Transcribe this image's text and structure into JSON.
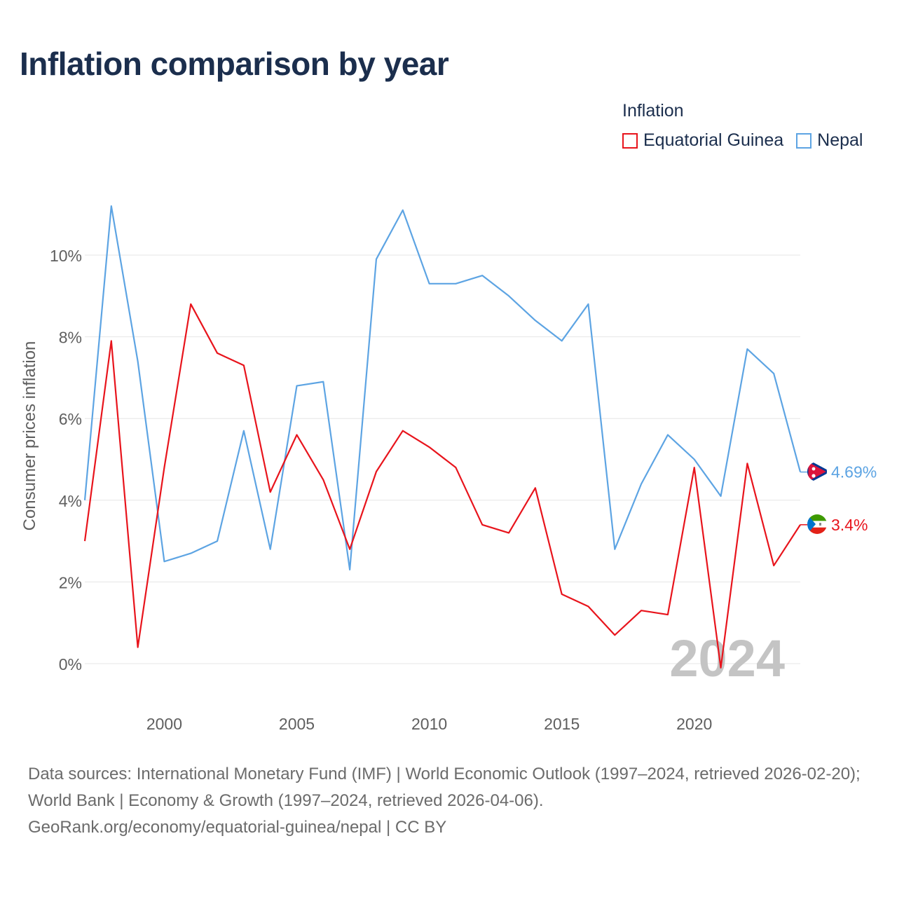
{
  "title": "Inflation comparison by year",
  "legend": {
    "title": "Inflation",
    "items": [
      {
        "label": "Equatorial Guinea",
        "color": "#e8141c"
      },
      {
        "label": "Nepal",
        "color": "#5da4e3"
      }
    ]
  },
  "chart_data": {
    "type": "line",
    "title": "Inflation comparison by year",
    "xlabel": "",
    "ylabel": "Consumer prices inflation",
    "x": [
      1997,
      1998,
      1999,
      2000,
      2001,
      2002,
      2003,
      2004,
      2005,
      2006,
      2007,
      2008,
      2009,
      2010,
      2011,
      2012,
      2013,
      2014,
      2015,
      2016,
      2017,
      2018,
      2019,
      2020,
      2021,
      2022,
      2023,
      2024
    ],
    "xticks": [
      2000,
      2005,
      2010,
      2015,
      2020
    ],
    "xtick_labels": [
      "2000",
      "2005",
      "2010",
      "2015",
      "2020"
    ],
    "yticks": [
      0,
      2,
      4,
      6,
      8,
      10
    ],
    "ytick_labels": [
      "0%",
      "2%",
      "4%",
      "6%",
      "8%",
      "10%"
    ],
    "xlim": [
      1997,
      2024
    ],
    "ylim": [
      -1,
      11.5
    ],
    "grid": true,
    "year_watermark": "2024",
    "series": [
      {
        "name": "Nepal",
        "color": "#5da4e3",
        "end_label": "4.69%",
        "values": [
          4.0,
          11.2,
          7.4,
          2.5,
          2.7,
          3.0,
          5.7,
          2.8,
          6.8,
          6.9,
          2.3,
          9.9,
          11.1,
          9.3,
          9.3,
          9.5,
          9.0,
          8.4,
          7.9,
          8.8,
          2.8,
          4.4,
          5.6,
          5.0,
          4.1,
          7.7,
          7.1,
          4.69
        ]
      },
      {
        "name": "Equatorial Guinea",
        "color": "#e8141c",
        "end_label": "3.4%",
        "values": [
          3.0,
          7.9,
          0.4,
          4.8,
          8.8,
          7.6,
          7.3,
          4.2,
          5.6,
          4.5,
          2.8,
          4.7,
          5.7,
          5.3,
          4.8,
          3.4,
          3.2,
          4.3,
          1.7,
          1.4,
          0.7,
          1.3,
          1.2,
          4.8,
          -0.1,
          4.9,
          2.4,
          3.4
        ]
      }
    ]
  },
  "footer": {
    "line1": "Data sources: International Monetary Fund (IMF) | World Economic Outlook (1997–2024, retrieved 2026-02-20); World Bank | Economy & Growth (1997–2024, retrieved 2026-04-06).",
    "line2": "GeoRank.org/economy/equatorial-guinea/nepal | CC BY"
  }
}
